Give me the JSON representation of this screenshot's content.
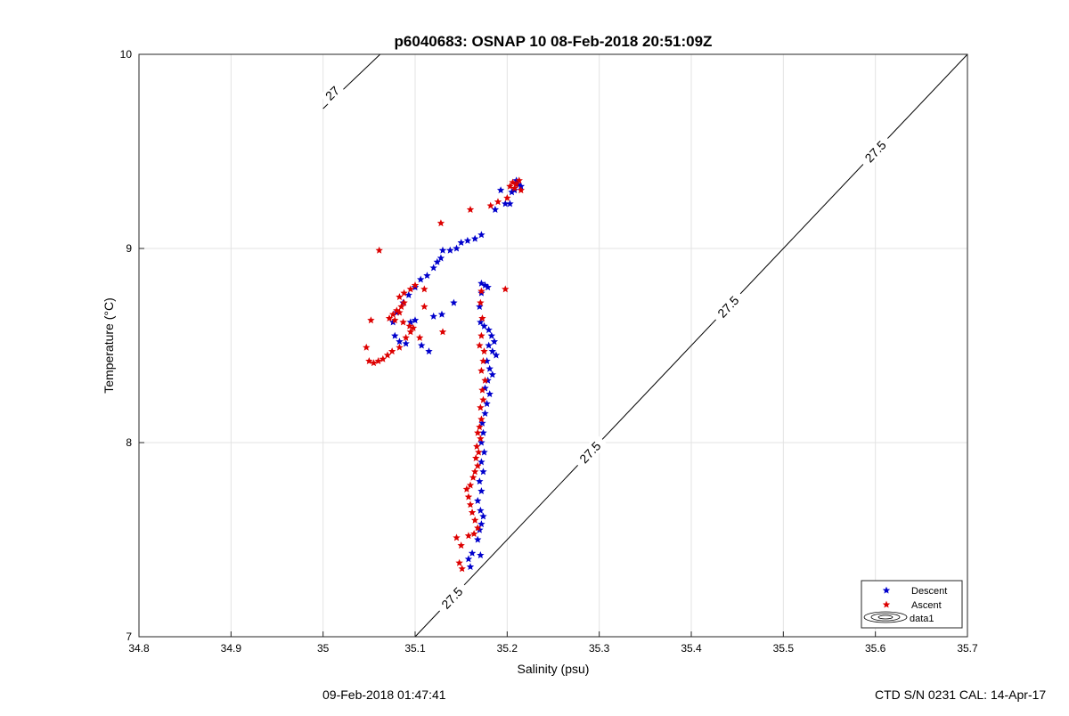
{
  "chart_data": {
    "type": "scatter",
    "title": "p6040683: OSNAP 10 08-Feb-2018 20:51:09Z",
    "xlabel": "Salinity (psu)",
    "ylabel": "Temperature (°C)",
    "xlim": [
      34.8,
      35.7
    ],
    "ylim": [
      7,
      10
    ],
    "x_ticks": [
      "34.8",
      "34.9",
      "35",
      "35.1",
      "35.2",
      "35.3",
      "35.4",
      "35.5",
      "35.6",
      "35.7"
    ],
    "y_ticks": [
      "7",
      "8",
      "9",
      "10"
    ],
    "grid": true,
    "legend_position": "bottom-right",
    "legend": [
      {
        "label": "Descent",
        "color": "#0000cc",
        "marker": "star"
      },
      {
        "label": "Ascent",
        "color": "#dd0000",
        "marker": "star"
      },
      {
        "label": "data1",
        "color": "#000000",
        "marker": "contour"
      }
    ],
    "contours": [
      {
        "label": "27",
        "points": [
          [
            35.0,
            9.72
          ],
          [
            35.062,
            10.0
          ]
        ]
      },
      {
        "label": "27.5",
        "points": [
          [
            35.1,
            7.0
          ],
          [
            35.7,
            10.0
          ]
        ]
      }
    ],
    "contour_labels": [
      {
        "text": "27",
        "x": 35.01,
        "y": 9.8
      },
      {
        "text": "27.5",
        "x": 35.14,
        "y": 7.2
      },
      {
        "text": "27.5",
        "x": 35.29,
        "y": 7.95
      },
      {
        "text": "27.5",
        "x": 35.44,
        "y": 8.7
      },
      {
        "text": "27.5",
        "x": 35.6,
        "y": 9.5
      }
    ],
    "series": [
      {
        "name": "Descent",
        "color": "#0000cc",
        "points": [
          [
            35.212,
            9.33
          ],
          [
            35.208,
            9.3
          ],
          [
            35.205,
            9.29
          ],
          [
            35.215,
            9.32
          ],
          [
            35.21,
            9.35
          ],
          [
            35.198,
            9.23
          ],
          [
            35.203,
            9.23
          ],
          [
            35.187,
            9.2
          ],
          [
            35.193,
            9.3
          ],
          [
            35.172,
            9.07
          ],
          [
            35.165,
            9.05
          ],
          [
            35.157,
            9.04
          ],
          [
            35.15,
            9.03
          ],
          [
            35.145,
            9.0
          ],
          [
            35.138,
            8.99
          ],
          [
            35.13,
            8.99
          ],
          [
            35.128,
            8.95
          ],
          [
            35.124,
            8.93
          ],
          [
            35.12,
            8.9
          ],
          [
            35.113,
            8.86
          ],
          [
            35.106,
            8.84
          ],
          [
            35.1,
            8.8
          ],
          [
            35.093,
            8.76
          ],
          [
            35.087,
            8.72
          ],
          [
            35.08,
            8.67
          ],
          [
            35.076,
            8.62
          ],
          [
            35.078,
            8.55
          ],
          [
            35.083,
            8.52
          ],
          [
            35.09,
            8.51
          ],
          [
            35.095,
            8.62
          ],
          [
            35.1,
            8.63
          ],
          [
            35.107,
            8.5
          ],
          [
            35.115,
            8.47
          ],
          [
            35.12,
            8.65
          ],
          [
            35.129,
            8.66
          ],
          [
            35.142,
            8.72
          ],
          [
            35.172,
            8.82
          ],
          [
            35.176,
            8.81
          ],
          [
            35.179,
            8.8
          ],
          [
            35.172,
            8.77
          ],
          [
            35.17,
            8.7
          ],
          [
            35.171,
            8.62
          ],
          [
            35.175,
            8.6
          ],
          [
            35.18,
            8.58
          ],
          [
            35.183,
            8.55
          ],
          [
            35.186,
            8.52
          ],
          [
            35.18,
            8.5
          ],
          [
            35.184,
            8.47
          ],
          [
            35.188,
            8.45
          ],
          [
            35.178,
            8.42
          ],
          [
            35.181,
            8.38
          ],
          [
            35.184,
            8.35
          ],
          [
            35.179,
            8.32
          ],
          [
            35.176,
            8.28
          ],
          [
            35.181,
            8.25
          ],
          [
            35.178,
            8.2
          ],
          [
            35.176,
            8.15
          ],
          [
            35.173,
            8.1
          ],
          [
            35.174,
            8.05
          ],
          [
            35.172,
            8.0
          ],
          [
            35.175,
            7.95
          ],
          [
            35.172,
            7.9
          ],
          [
            35.174,
            7.85
          ],
          [
            35.17,
            7.8
          ],
          [
            35.172,
            7.75
          ],
          [
            35.168,
            7.7
          ],
          [
            35.171,
            7.65
          ],
          [
            35.174,
            7.62
          ],
          [
            35.172,
            7.58
          ],
          [
            35.17,
            7.55
          ],
          [
            35.168,
            7.5
          ],
          [
            35.171,
            7.42
          ],
          [
            35.162,
            7.43
          ],
          [
            35.158,
            7.4
          ],
          [
            35.16,
            7.36
          ]
        ]
      },
      {
        "name": "Ascent",
        "color": "#dd0000",
        "points": [
          [
            35.206,
            9.34
          ],
          [
            35.21,
            9.33
          ],
          [
            35.213,
            9.35
          ],
          [
            35.208,
            9.31
          ],
          [
            35.203,
            9.32
          ],
          [
            35.215,
            9.3
          ],
          [
            35.2,
            9.26
          ],
          [
            35.19,
            9.24
          ],
          [
            35.182,
            9.22
          ],
          [
            35.16,
            9.2
          ],
          [
            35.128,
            9.13
          ],
          [
            35.061,
            8.99
          ],
          [
            35.198,
            8.79
          ],
          [
            35.172,
            8.78
          ],
          [
            35.171,
            8.72
          ],
          [
            35.173,
            8.64
          ],
          [
            35.172,
            8.55
          ],
          [
            35.17,
            8.5
          ],
          [
            35.175,
            8.47
          ],
          [
            35.174,
            8.42
          ],
          [
            35.172,
            8.37
          ],
          [
            35.176,
            8.32
          ],
          [
            35.173,
            8.27
          ],
          [
            35.174,
            8.22
          ],
          [
            35.171,
            8.18
          ],
          [
            35.172,
            8.12
          ],
          [
            35.17,
            8.08
          ],
          [
            35.168,
            8.05
          ],
          [
            35.171,
            8.02
          ],
          [
            35.167,
            7.98
          ],
          [
            35.169,
            7.95
          ],
          [
            35.166,
            7.92
          ],
          [
            35.168,
            7.88
          ],
          [
            35.165,
            7.85
          ],
          [
            35.163,
            7.82
          ],
          [
            35.16,
            7.78
          ],
          [
            35.156,
            7.76
          ],
          [
            35.158,
            7.72
          ],
          [
            35.16,
            7.68
          ],
          [
            35.162,
            7.64
          ],
          [
            35.165,
            7.6
          ],
          [
            35.168,
            7.56
          ],
          [
            35.164,
            7.53
          ],
          [
            35.145,
            7.51
          ],
          [
            35.15,
            7.47
          ],
          [
            35.148,
            7.38
          ],
          [
            35.151,
            7.35
          ],
          [
            35.158,
            7.52
          ],
          [
            35.1,
            8.81
          ],
          [
            35.095,
            8.79
          ],
          [
            35.088,
            8.77
          ],
          [
            35.083,
            8.75
          ],
          [
            35.088,
            8.72
          ],
          [
            35.085,
            8.7
          ],
          [
            35.08,
            8.68
          ],
          [
            35.076,
            8.66
          ],
          [
            35.072,
            8.64
          ],
          [
            35.078,
            8.63
          ],
          [
            35.083,
            8.67
          ],
          [
            35.087,
            8.62
          ],
          [
            35.094,
            8.6
          ],
          [
            35.098,
            8.59
          ],
          [
            35.105,
            8.54
          ],
          [
            35.095,
            8.57
          ],
          [
            35.09,
            8.54
          ],
          [
            35.083,
            8.49
          ],
          [
            35.075,
            8.47
          ],
          [
            35.07,
            8.45
          ],
          [
            35.065,
            8.43
          ],
          [
            35.06,
            8.42
          ],
          [
            35.055,
            8.41
          ],
          [
            35.05,
            8.42
          ],
          [
            35.047,
            8.49
          ],
          [
            35.052,
            8.63
          ],
          [
            35.13,
            8.57
          ],
          [
            35.11,
            8.7
          ],
          [
            35.11,
            8.79
          ]
        ]
      }
    ]
  },
  "footer": {
    "left_text": "09-Feb-2018 01:47:41",
    "right_text": "CTD S/N 0231  CAL: 14-Apr-17"
  }
}
